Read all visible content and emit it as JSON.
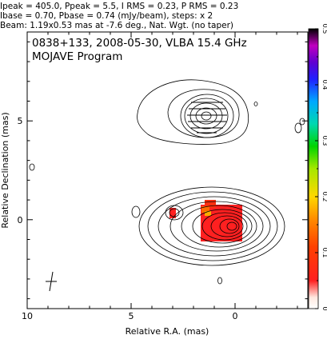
{
  "chart_data": {
    "type": "heatmap",
    "header_lines": [
      "Ipeak = 405.0, Ppeak = 5.5, I RMS = 0.23, P RMS = 0.23",
      "Ibase = 0.70, Pbase = 0.74 (mJy/beam), steps: x 2",
      "Beam: 1.19x0.53 mas at -7.6 deg., Nat. Wgt. (no taper)"
    ],
    "title": "0838+133, 2008-05-30, VLBA 15.4 GHz",
    "subtitle": "MOJAVE Program",
    "xlabel": "Relative R.A. (mas)",
    "ylabel": "Relative Declination (mas)",
    "xlim": [
      10,
      -3.5
    ],
    "ylim": [
      -4.5,
      9.5
    ],
    "x_ticks": [
      10,
      5,
      0
    ],
    "y_ticks": [
      5,
      0
    ],
    "colorbar": {
      "range": [
        0,
        0.5
      ],
      "ticks": [
        "0",
        "0.1",
        "0.2",
        "0.3",
        "0.4",
        "0.5"
      ]
    },
    "components": [
      {
        "x": 0.0,
        "y": 0.0,
        "type": "core"
      },
      {
        "x": 1.3,
        "y": 5.2,
        "type": "jet knot"
      },
      {
        "x": 3.0,
        "y": 0.6,
        "type": "jet knot"
      }
    ],
    "beam": {
      "major_mas": 1.19,
      "minor_mas": 0.53,
      "pa_deg": -7.6
    },
    "grid": false
  }
}
